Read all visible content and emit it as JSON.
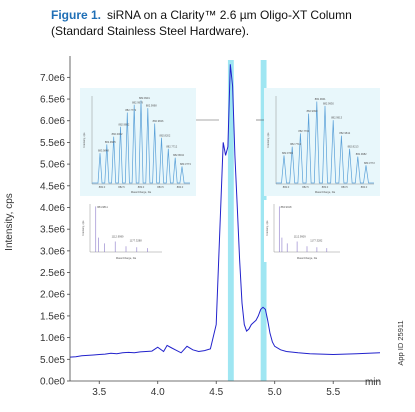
{
  "caption": {
    "figure_label": "Figure 1.",
    "line1": "siRNA on a Clarity™ 2.6 µm Oligo-XT Column",
    "line2": "(Standard Stainless Steel Hardware)."
  },
  "app_id": "App ID 25911",
  "colors": {
    "trace": "#2222cc",
    "highlight": "#9fe6f2",
    "inset_bg": "#e8f7fb",
    "inset_trace": "#5aa0d8",
    "caption_accent": "#1f6fb6"
  },
  "chart_data": {
    "type": "line",
    "xlabel": "min",
    "ylabel": "Intensity, cps",
    "xlim": [
      3.25,
      5.9
    ],
    "ylim": [
      0,
      7400000.0
    ],
    "xticks": [
      3.5,
      4.0,
      4.5,
      5.0,
      5.5
    ],
    "xtick_labels": [
      "3.5",
      "4.0",
      "4.5",
      "5.0",
      "5.5"
    ],
    "yticks": [
      0,
      500000,
      1000000,
      1500000,
      2000000,
      2500000,
      3000000,
      3500000,
      4000000,
      4500000,
      5000000,
      5500000,
      6000000,
      6500000,
      7000000
    ],
    "ytick_labels": [
      "0.0e0",
      "5.0e5",
      "1.0e6",
      "1.5e6",
      "2.0e6",
      "2.5e6",
      "3.0e6",
      "3.5e6",
      "4.0e6",
      "4.5e6",
      "5.0e6",
      "5.5e6",
      "6.0e6",
      "6.5e6",
      "7.0e6"
    ],
    "highlight_bands": [
      [
        4.6,
        4.65
      ],
      [
        4.88,
        4.93
      ]
    ],
    "series": [
      {
        "x": [
          3.25,
          3.3,
          3.35,
          3.4,
          3.45,
          3.5,
          3.55,
          3.6,
          3.65,
          3.7,
          3.75,
          3.8,
          3.85,
          3.9,
          3.95,
          4.0,
          4.05,
          4.08,
          4.12,
          4.15,
          4.2,
          4.25,
          4.3,
          4.35,
          4.4,
          4.45,
          4.5,
          4.53,
          4.56,
          4.58,
          4.6,
          4.62,
          4.64,
          4.66,
          4.68,
          4.7,
          4.72,
          4.74,
          4.76,
          4.78,
          4.8,
          4.82,
          4.84,
          4.86,
          4.88,
          4.9,
          4.92,
          4.94,
          4.96,
          4.98,
          5.0,
          5.05,
          5.1,
          5.2,
          5.3,
          5.4,
          5.5,
          5.6,
          5.7,
          5.8,
          5.9
        ],
        "y": [
          550000,
          560000,
          580000,
          590000,
          600000,
          610000,
          620000,
          640000,
          630000,
          650000,
          660000,
          650000,
          670000,
          680000,
          690000,
          780000,
          680000,
          820000,
          760000,
          720000,
          650000,
          800000,
          720000,
          680000,
          700000,
          740000,
          1300000,
          3400000,
          5500000,
          5200000,
          5400000,
          7300000,
          6800000,
          5200000,
          4000000,
          2800000,
          1800000,
          1300000,
          1150000,
          1200000,
          1300000,
          1350000,
          1400000,
          1500000,
          1650000,
          1700000,
          1650000,
          1400000,
          1100000,
          900000,
          800000,
          720000,
          680000,
          650000,
          630000,
          620000,
          610000,
          620000,
          630000,
          640000,
          650000
        ]
      }
    ],
    "inset_left_top": {
      "type": "line",
      "xlabel": "Mass/Charge, Da",
      "ylabel": "Intensity, cps",
      "peaks": [
        {
          "label": "883.9848",
          "value": 2.8
        },
        {
          "label": "882.9905",
          "value": 3.6
        },
        {
          "label": "882.0002",
          "value": 4.3
        },
        {
          "label": "882.9802",
          "value": 5.2
        },
        {
          "label": "882.7772",
          "value": 6.5
        },
        {
          "label": "882.9979",
          "value": 7.2
        },
        {
          "label": "882.9901",
          "value": 7.6
        },
        {
          "label": "882.9998",
          "value": 6.9
        },
        {
          "label": "882.9826",
          "value": 5.5
        },
        {
          "label": "882.8202",
          "value": 4.2
        },
        {
          "label": "882.7712",
          "value": 3.2
        },
        {
          "label": "882.8004",
          "value": 2.4
        },
        {
          "label": "883.3773",
          "value": 1.6
        }
      ],
      "xtick_labels": [
        "882.0",
        "882.5",
        "883.0",
        "883.5",
        "884.0"
      ]
    },
    "inset_right_top": {
      "type": "line",
      "xlabel": "Mass/Charge, Da",
      "ylabel": "Intensity, cps",
      "peaks": [
        {
          "label": "882.9799",
          "value": 2.6
        },
        {
          "label": "882.7713",
          "value": 3.4
        },
        {
          "label": "882.7702",
          "value": 4.6
        },
        {
          "label": "882.9990",
          "value": 6.4
        },
        {
          "label": "882.9901",
          "value": 7.5
        },
        {
          "label": "882.9930",
          "value": 7.1
        },
        {
          "label": "882.9913",
          "value": 5.8
        },
        {
          "label": "882.9812",
          "value": 4.4
        },
        {
          "label": "882.8213",
          "value": 3.2
        },
        {
          "label": "882.9982",
          "value": 2.5
        },
        {
          "label": "883.3772",
          "value": 1.7
        }
      ],
      "xtick_labels": [
        "882.0",
        "882.5",
        "883.0",
        "883.5",
        "884.0"
      ]
    },
    "inset_left_bottom": {
      "type": "line",
      "xlabel": "Mass/Charge, Da",
      "ylabel": "Intensity, cps",
      "labels": [
        "884.9811",
        "1112.9999",
        "1177.3288"
      ]
    },
    "inset_right_bottom": {
      "type": "line",
      "xlabel": "Mass/Charge, Da",
      "ylabel": "Intensity, cps",
      "labels": [
        "884.9918",
        "1112.9909",
        "1177.3282"
      ]
    }
  }
}
